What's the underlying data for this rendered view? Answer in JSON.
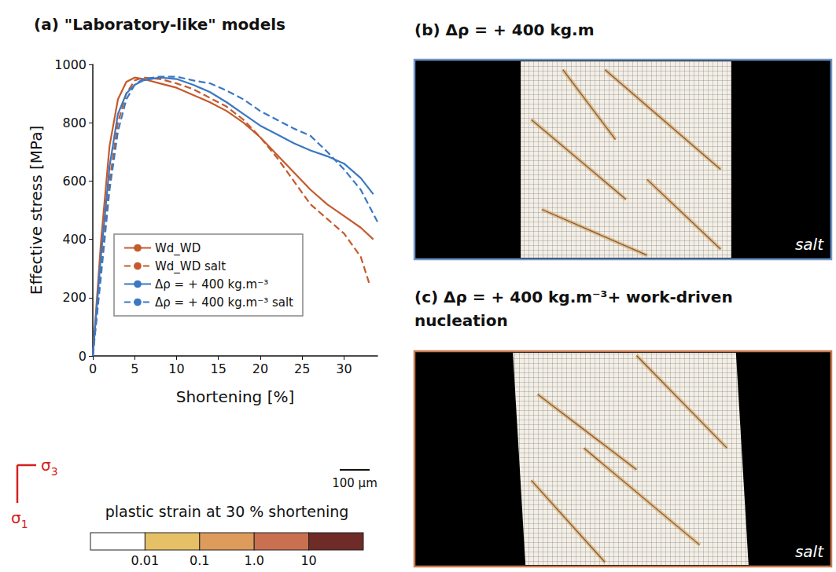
{
  "chart_data": {
    "type": "line",
    "title": "(a) \"Laboratory-like\" models",
    "x_label": "Shortening [%]",
    "y_label": "Effective stress [MPa]",
    "xlim": [
      0,
      34
    ],
    "xticks": [
      0,
      5,
      10,
      15,
      20,
      25,
      30
    ],
    "ylim": [
      0,
      1000
    ],
    "yticks": [
      0,
      200,
      400,
      600,
      800,
      1000
    ],
    "grid": false,
    "legend": "lower left",
    "series": [
      {
        "name": "Wd_WD",
        "color": "#c55a2c",
        "line_style": "solid",
        "x": [
          0,
          1,
          2,
          3,
          4,
          5,
          6,
          8,
          10,
          12,
          14,
          16,
          18,
          20,
          22,
          24,
          26,
          28,
          30,
          32,
          33.5
        ],
        "values": [
          0,
          400,
          720,
          880,
          940,
          955,
          950,
          935,
          920,
          895,
          870,
          840,
          800,
          750,
          690,
          630,
          570,
          520,
          480,
          440,
          400
        ]
      },
      {
        "name": "Wd_WD salt",
        "color": "#c55a2c",
        "line_style": "dashed",
        "x": [
          0,
          1,
          2,
          3,
          4,
          5,
          6,
          8,
          10,
          12,
          14,
          16,
          18,
          20,
          22,
          24,
          26,
          28,
          30,
          32,
          33
        ],
        "values": [
          0,
          300,
          600,
          800,
          900,
          945,
          955,
          950,
          935,
          915,
          885,
          855,
          810,
          750,
          680,
          600,
          520,
          470,
          420,
          340,
          250
        ]
      },
      {
        "name": "Δρ = + 400 kg.m⁻³",
        "color": "#3a78c3",
        "line_style": "solid",
        "x": [
          0,
          1,
          2,
          3,
          4,
          5,
          6,
          8,
          10,
          12,
          14,
          16,
          18,
          20,
          22,
          24,
          26,
          28,
          30,
          32,
          33.5
        ],
        "values": [
          0,
          350,
          650,
          830,
          900,
          930,
          945,
          955,
          950,
          930,
          905,
          870,
          830,
          790,
          760,
          730,
          705,
          685,
          660,
          610,
          555
        ]
      },
      {
        "name": "Δρ = + 400 kg.m⁻³ salt",
        "color": "#3a78c3",
        "line_style": "dashed",
        "x": [
          0,
          1,
          2,
          3,
          4,
          5,
          6,
          8,
          10,
          12,
          14,
          16,
          18,
          20,
          22,
          24,
          26,
          28,
          30,
          32,
          34
        ],
        "values": [
          0,
          280,
          570,
          770,
          880,
          930,
          950,
          958,
          958,
          945,
          935,
          910,
          880,
          840,
          810,
          780,
          755,
          700,
          640,
          570,
          460
        ]
      }
    ]
  },
  "panel_b": {
    "title": "(b) Δρ = + 400 kg.m",
    "label": "salt"
  },
  "panel_c": {
    "title": "(c) Δρ = + 400 kg.m⁻³+ work-driven nucleation",
    "label": "salt"
  },
  "colorbar": {
    "title": "plastic strain at 30 % shortening",
    "log": true,
    "range": [
      0.001,
      100
    ],
    "ticks": [
      0.01,
      0.1,
      {
        "value": 1,
        "label": "1.0"
      },
      10
    ],
    "colors": [
      "#ffffff",
      "#e6c066",
      "#dd9b5c",
      "#c8704f",
      "#6e2b27"
    ]
  },
  "scale_bar": {
    "label": "100 µm"
  },
  "stress_axes": {
    "sigma_3": "σ3",
    "sigma_1": "σ1"
  }
}
